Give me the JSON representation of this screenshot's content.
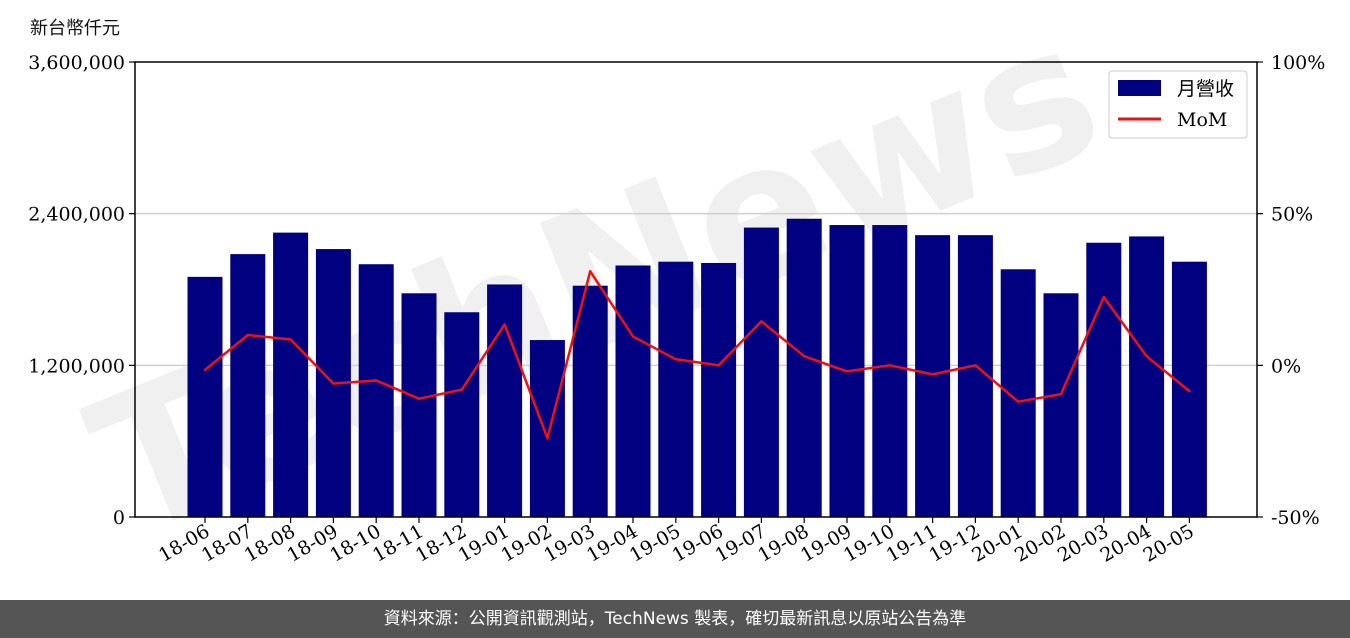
{
  "unit_label": "新台幣仟元",
  "footer_text": "資料來源：公開資訊觀測站，TechNews 製表，確切最新訊息以原站公告為準",
  "watermark_text": "TechNews",
  "colors": {
    "bar": "#000080",
    "line": "#ee1111",
    "grid": "#d0d0d0",
    "watermark": "#e6e6e6"
  },
  "chart_data": {
    "type": "bar",
    "categories": [
      "18-06",
      "18-07",
      "18-08",
      "18-09",
      "18-10",
      "18-11",
      "18-12",
      "19-01",
      "19-02",
      "19-03",
      "19-04",
      "19-05",
      "19-06",
      "19-07",
      "19-08",
      "19-09",
      "19-10",
      "19-11",
      "19-12",
      "20-01",
      "20-02",
      "20-03",
      "20-04",
      "20-05"
    ],
    "series": [
      {
        "name": "月營收",
        "axis": "left",
        "type": "bar",
        "values": [
          1900000,
          2080000,
          2250000,
          2120000,
          2000000,
          1770000,
          1620000,
          1840000,
          1400000,
          1830000,
          1990000,
          2020000,
          2010000,
          2290000,
          2360000,
          2310000,
          2310000,
          2230000,
          2230000,
          1960000,
          1770000,
          2170000,
          2220000,
          2020000
        ]
      },
      {
        "name": "MoM",
        "axis": "right",
        "type": "line",
        "values": [
          -1.5,
          10,
          8.5,
          -6,
          -5,
          -11,
          -8,
          13.5,
          -24,
          31,
          9.5,
          2,
          0,
          14.5,
          3,
          -2,
          0,
          -3,
          0,
          -12,
          -9.5,
          22.5,
          3,
          -8.5
        ]
      }
    ],
    "left_axis": {
      "min": 0,
      "max": 3600000,
      "ticks": [
        "0",
        "1,200,000",
        "2,400,000",
        "3,600,000"
      ]
    },
    "right_axis": {
      "min": -50,
      "max": 100,
      "ticks": [
        "-50%",
        "0%",
        "50%",
        "100%"
      ]
    },
    "grid": true,
    "legend": "top-right"
  }
}
